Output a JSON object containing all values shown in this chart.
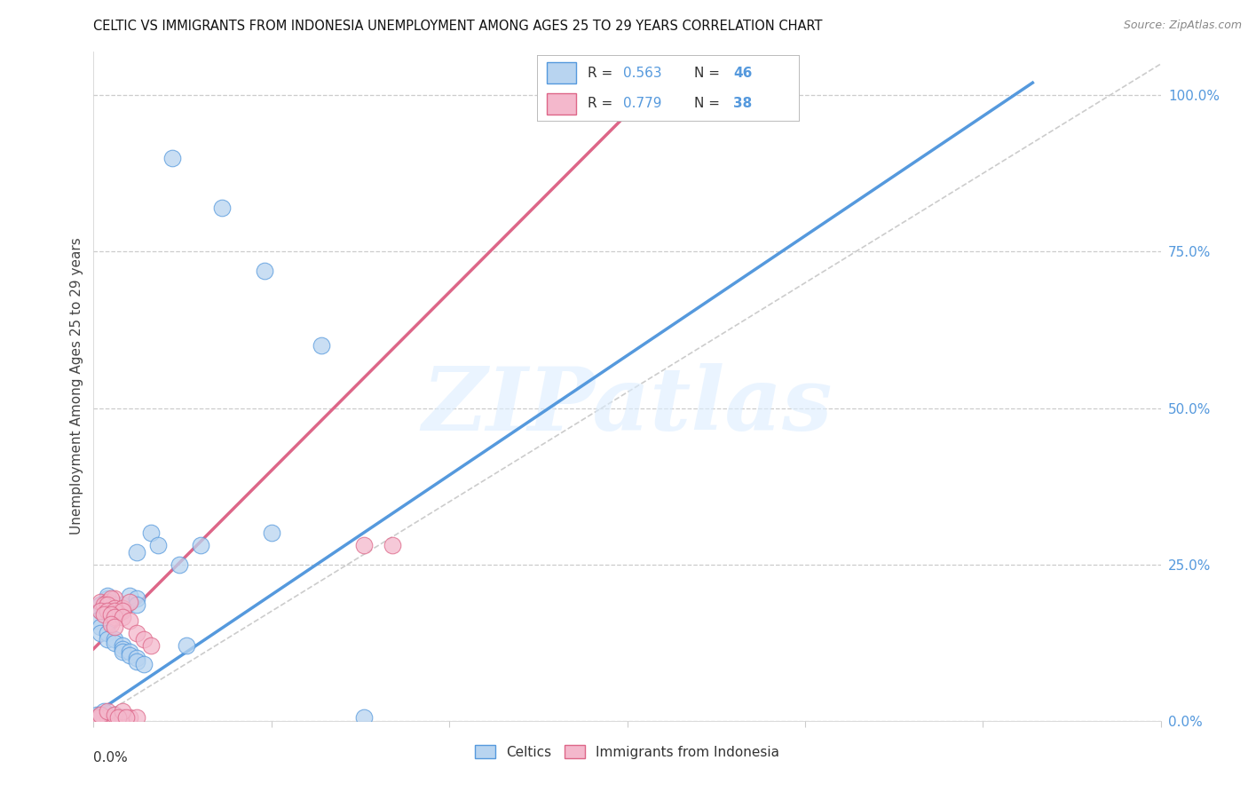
{
  "title": "CELTIC VS IMMIGRANTS FROM INDONESIA UNEMPLOYMENT AMONG AGES 25 TO 29 YEARS CORRELATION CHART",
  "source": "Source: ZipAtlas.com",
  "ylabel": "Unemployment Among Ages 25 to 29 years",
  "ylabel_right_ticks": [
    "0.0%",
    "25.0%",
    "50.0%",
    "75.0%",
    "100.0%"
  ],
  "ylabel_right_vals": [
    0.0,
    0.25,
    0.5,
    0.75,
    1.0
  ],
  "legend_celtics_R": 0.563,
  "legend_celtics_N": 46,
  "legend_indonesia_R": 0.779,
  "legend_indonesia_N": 38,
  "celtics_color": "#b8d4f0",
  "indonesia_color": "#f4b8cc",
  "celtics_line_color": "#5599dd",
  "indonesia_line_color": "#dd6688",
  "watermark_text": "ZIPatlas",
  "celtics_scatter": [
    [
      0.011,
      0.9
    ],
    [
      0.018,
      0.82
    ],
    [
      0.024,
      0.72
    ],
    [
      0.032,
      0.6
    ],
    [
      0.002,
      0.195
    ],
    [
      0.004,
      0.185
    ],
    [
      0.006,
      0.27
    ],
    [
      0.008,
      0.3
    ],
    [
      0.009,
      0.28
    ],
    [
      0.012,
      0.25
    ],
    [
      0.015,
      0.28
    ],
    [
      0.025,
      0.3
    ],
    [
      0.005,
      0.2
    ],
    [
      0.006,
      0.195
    ],
    [
      0.006,
      0.185
    ],
    [
      0.002,
      0.2
    ],
    [
      0.003,
      0.185
    ],
    [
      0.001,
      0.185
    ],
    [
      0.001,
      0.175
    ],
    [
      0.0005,
      0.16
    ],
    [
      0.001,
      0.15
    ],
    [
      0.001,
      0.14
    ],
    [
      0.002,
      0.14
    ],
    [
      0.002,
      0.13
    ],
    [
      0.003,
      0.13
    ],
    [
      0.003,
      0.125
    ],
    [
      0.004,
      0.12
    ],
    [
      0.004,
      0.115
    ],
    [
      0.004,
      0.11
    ],
    [
      0.005,
      0.11
    ],
    [
      0.005,
      0.105
    ],
    [
      0.006,
      0.1
    ],
    [
      0.006,
      0.095
    ],
    [
      0.007,
      0.09
    ],
    [
      0.0005,
      0.01
    ],
    [
      0.001,
      0.01
    ],
    [
      0.002,
      0.01
    ],
    [
      0.003,
      0.01
    ],
    [
      0.003,
      0.005
    ],
    [
      0.004,
      0.005
    ],
    [
      0.0025,
      0.005
    ],
    [
      0.0035,
      0.005
    ],
    [
      0.013,
      0.12
    ],
    [
      0.038,
      0.005
    ],
    [
      0.0015,
      0.005
    ],
    [
      0.0015,
      0.015
    ]
  ],
  "indonesia_scatter": [
    [
      0.038,
      0.28
    ],
    [
      0.042,
      0.28
    ],
    [
      0.001,
      0.005
    ],
    [
      0.002,
      0.005
    ],
    [
      0.003,
      0.005
    ],
    [
      0.004,
      0.005
    ],
    [
      0.005,
      0.005
    ],
    [
      0.006,
      0.005
    ],
    [
      0.0005,
      0.005
    ],
    [
      0.001,
      0.01
    ],
    [
      0.002,
      0.015
    ],
    [
      0.003,
      0.01
    ],
    [
      0.004,
      0.015
    ],
    [
      0.001,
      0.19
    ],
    [
      0.002,
      0.19
    ],
    [
      0.003,
      0.195
    ],
    [
      0.0025,
      0.195
    ],
    [
      0.0015,
      0.185
    ],
    [
      0.002,
      0.185
    ],
    [
      0.003,
      0.18
    ],
    [
      0.004,
      0.18
    ],
    [
      0.005,
      0.19
    ],
    [
      0.001,
      0.175
    ],
    [
      0.002,
      0.175
    ],
    [
      0.003,
      0.175
    ],
    [
      0.004,
      0.175
    ],
    [
      0.0015,
      0.17
    ],
    [
      0.0025,
      0.17
    ],
    [
      0.003,
      0.165
    ],
    [
      0.004,
      0.165
    ],
    [
      0.005,
      0.16
    ],
    [
      0.0025,
      0.155
    ],
    [
      0.003,
      0.15
    ],
    [
      0.006,
      0.14
    ],
    [
      0.007,
      0.13
    ],
    [
      0.008,
      0.12
    ],
    [
      0.0035,
      0.005
    ],
    [
      0.0045,
      0.005
    ]
  ],
  "celtics_line": [
    0.0,
    0.01,
    0.132,
    1.02
  ],
  "indonesia_line": [
    0.0,
    0.115,
    0.075,
    0.97
  ],
  "ref_line": [
    0.0,
    0.0,
    0.15,
    1.05
  ],
  "xmin": 0.0,
  "xmax": 0.15,
  "ymin": 0.0,
  "ymax": 1.07,
  "x_tick_positions": [
    0.0,
    0.025,
    0.05,
    0.075,
    0.1,
    0.125,
    0.15
  ],
  "bg_color": "#ffffff",
  "grid_color": "#cccccc",
  "axis_color": "#cccccc"
}
